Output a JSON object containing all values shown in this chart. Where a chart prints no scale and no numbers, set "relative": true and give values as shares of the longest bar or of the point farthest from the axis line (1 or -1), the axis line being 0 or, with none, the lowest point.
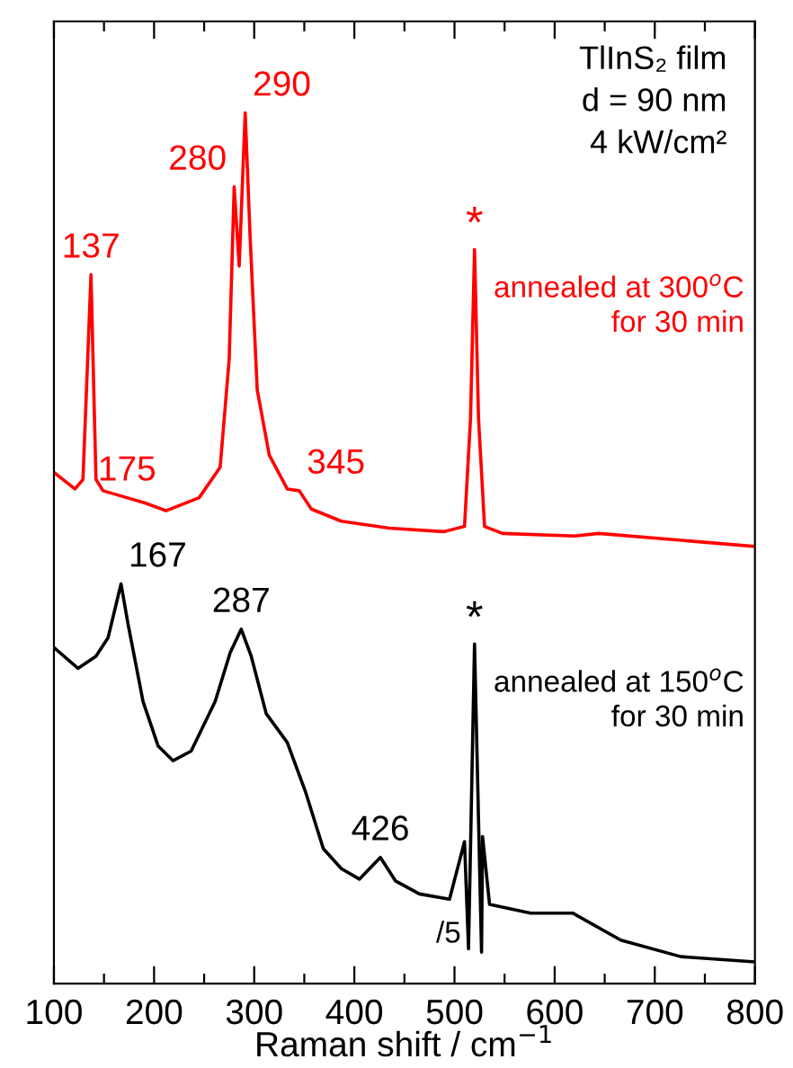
{
  "chart_data": {
    "type": "line",
    "relative": true,
    "xlabel": "Raman shift / cm$^{−1}$",
    "xlim": [
      100,
      800
    ],
    "xticks": [
      100,
      {
        "value": 150,
        "label": null
      },
      200,
      {
        "value": 250,
        "label": null
      },
      300,
      {
        "value": 350,
        "label": null
      },
      400,
      {
        "value": 450,
        "label": null
      },
      500,
      {
        "value": 550,
        "label": null
      },
      600,
      {
        "value": 650,
        "label": null
      },
      700,
      {
        "value": 750,
        "label": null
      },
      800
    ],
    "grid": false,
    "legend": false,
    "marker": "none",
    "line_style": "solid",
    "series": [
      {
        "name": "annealed at 300$^{o}$C\nfor 30 min",
        "color": "#ff0000",
        "x": [
          100,
          121,
          129,
          137,
          142,
          149,
          173,
          191,
          212,
          245,
          266,
          275,
          280,
          285,
          291,
          296,
          303,
          315,
          333,
          345,
          357,
          387,
          435,
          489,
          510,
          516,
          520,
          524,
          530,
          548,
          620,
          644,
          800
        ],
        "values": [
          0.587,
          0.568,
          0.579,
          0.814,
          0.579,
          0.566,
          0.558,
          0.552,
          0.543,
          0.558,
          0.593,
          0.717,
          0.915,
          0.824,
          1.0,
          0.855,
          0.682,
          0.607,
          0.568,
          0.566,
          0.545,
          0.531,
          0.523,
          0.519,
          0.525,
          0.649,
          0.843,
          0.649,
          0.525,
          0.517,
          0.514,
          0.517,
          0.502
        ]
      },
      {
        "name": "annealed at 150$^{o}$C\nfor 30 min",
        "color": "#000000",
        "x": [
          100,
          124,
          142,
          154,
          167,
          174,
          189,
          204,
          219,
          237,
          261,
          276,
          287,
          297,
          312,
          333,
          351,
          369,
          387,
          405,
          426,
          441,
          465,
          495,
          510,
          514,
          520,
          527,
          528,
          535,
          576,
          618,
          666,
          726,
          800
        ],
        "values": [
          0.386,
          0.362,
          0.376,
          0.397,
          0.459,
          0.413,
          0.324,
          0.273,
          0.256,
          0.267,
          0.324,
          0.38,
          0.407,
          0.376,
          0.31,
          0.277,
          0.221,
          0.155,
          0.132,
          0.12,
          0.145,
          0.118,
          0.103,
          0.097,
          0.163,
          0.04,
          0.39,
          0.036,
          0.169,
          0.091,
          0.081,
          0.081,
          0.05,
          0.031,
          0.025
        ]
      }
    ],
    "annotations": [
      "TlInS₂ film\nd = 90 nm\n4 kW/cm²",
      {
        "text": "137",
        "x": 137,
        "y": 0.814
      },
      {
        "text": "175",
        "x": 173,
        "y": 0.558
      },
      {
        "text": "280",
        "x": 280,
        "y": 0.915
      },
      {
        "text": "290",
        "x": 291,
        "y": 1.0
      },
      {
        "text": "345",
        "x": 345,
        "y": 0.566
      },
      {
        "text": "*",
        "x": 520,
        "y": 0.843
      },
      {
        "text": "167",
        "x": 167,
        "y": 0.459
      },
      {
        "text": "287",
        "x": 287,
        "y": 0.407
      },
      {
        "text": "426",
        "x": 426,
        "y": 0.145
      },
      {
        "text": "*",
        "x": 520,
        "y": 0.39
      },
      {
        "text": "/5",
        "x": 514,
        "y": 0.04
      }
    ]
  }
}
